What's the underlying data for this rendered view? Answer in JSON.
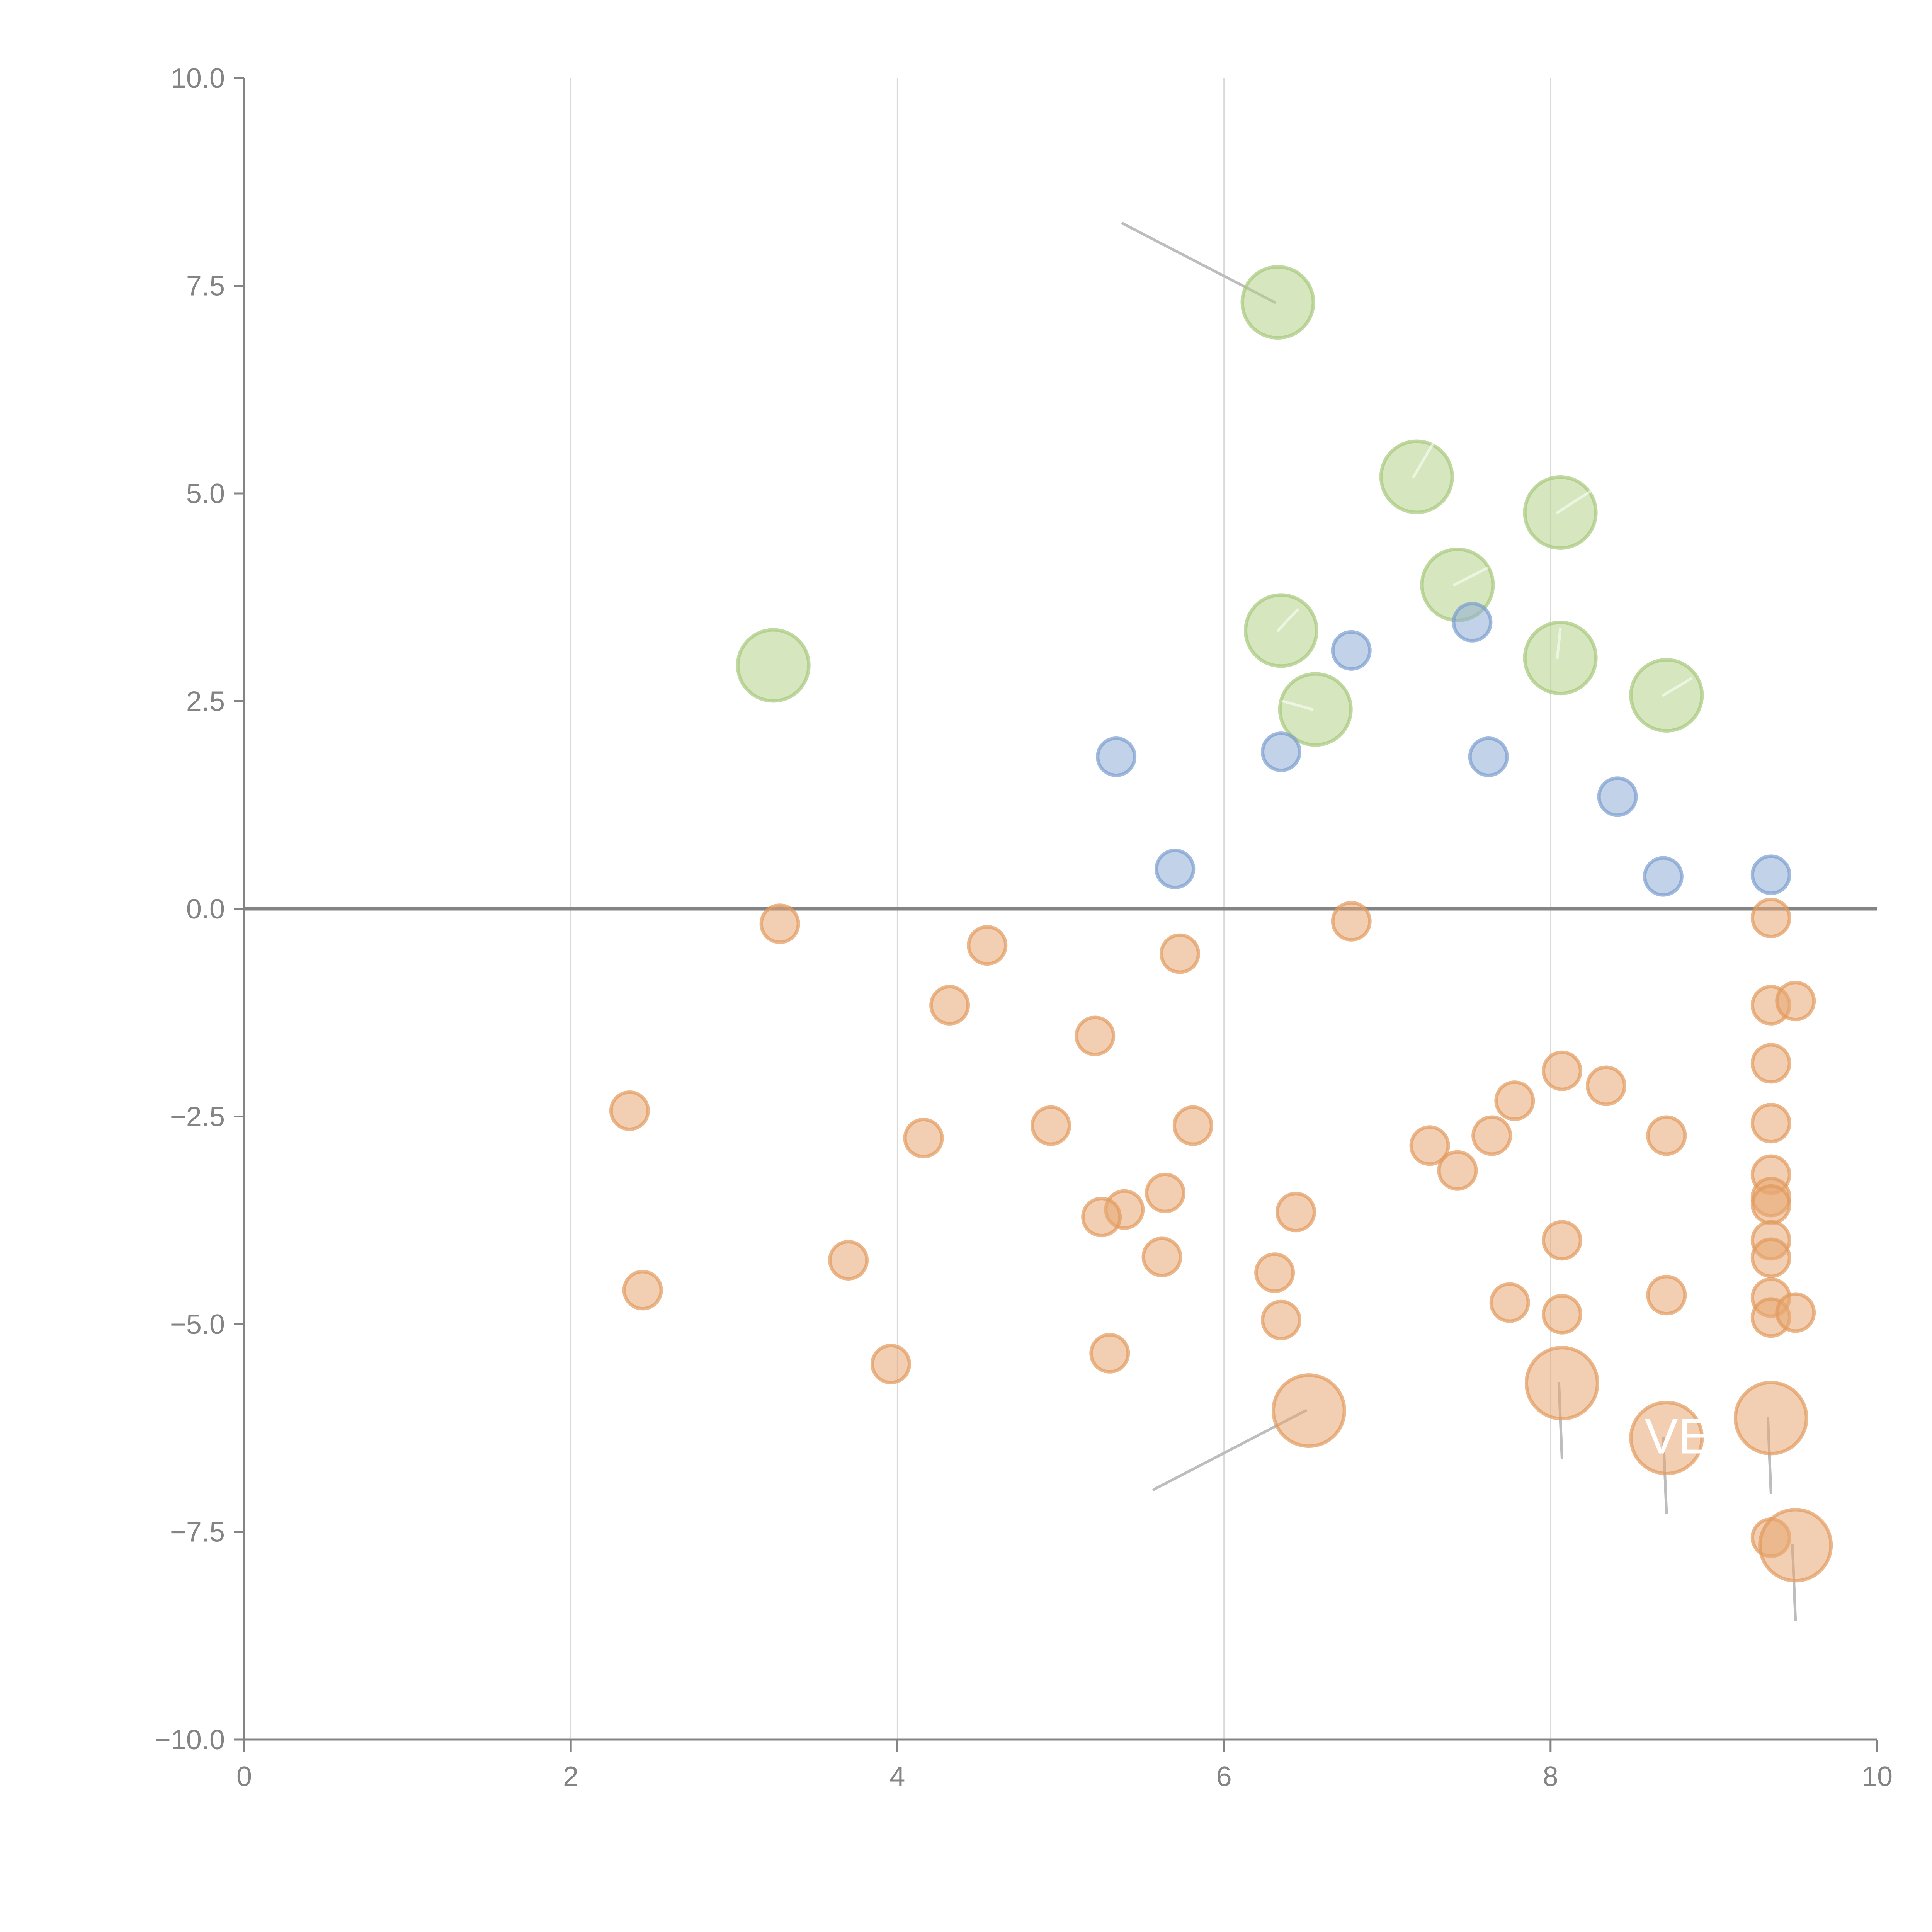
{
  "chart_data": {
    "type": "scatter",
    "title": "",
    "xlabel": "",
    "ylabel": "",
    "xlim": [
      0,
      10
    ],
    "ylim": [
      -10,
      10
    ],
    "x_ticks": [
      "0",
      "2",
      "4",
      "6",
      "8",
      "10"
    ],
    "x_tick_values": [
      0,
      2,
      4,
      6,
      8,
      10
    ],
    "y_ticks": [
      "10.0",
      "7.5",
      "5.0",
      "2.5",
      "0.0",
      "−2.5",
      "−5.0",
      "−7.5",
      "−10.0"
    ],
    "y_tick_values": [
      10,
      7.5,
      5,
      2.5,
      0,
      -2.5,
      -5,
      -7.5,
      -10
    ],
    "grid": "vertical",
    "zero_line": true,
    "series": [
      {
        "name": "green",
        "color": "#b5d18a",
        "stroke": "#a6c77a",
        "size": "large",
        "points": [
          {
            "x": 6.33,
            "y": 7.3,
            "leader": "dark",
            "ldx": -0.95,
            "ldy": 0.95
          },
          {
            "x": 7.18,
            "y": 5.2,
            "leader": "light",
            "ldx": 0.1,
            "ldy": 0.4
          },
          {
            "x": 8.06,
            "y": 4.77,
            "leader": "light",
            "ldx": 0.18,
            "ldy": 0.25
          },
          {
            "x": 7.43,
            "y": 3.9,
            "leader": "light",
            "ldx": 0.18,
            "ldy": 0.2
          },
          {
            "x": 6.35,
            "y": 3.35,
            "leader": "light",
            "ldx": 0.1,
            "ldy": 0.25
          },
          {
            "x": 8.06,
            "y": 3.02,
            "leader": "light",
            "ldx": 0.0,
            "ldy": 0.35
          },
          {
            "x": 8.71,
            "y": 2.57,
            "leader": "light",
            "ldx": 0.15,
            "ldy": 0.2
          },
          {
            "x": 6.56,
            "y": 2.4,
            "leader": "light",
            "ldx": -0.2,
            "ldy": 0.1
          },
          {
            "x": 3.24,
            "y": 2.93
          }
        ]
      },
      {
        "name": "blue",
        "color": "#8fadd6",
        "stroke": "#7a9dcf",
        "size": "small",
        "points": [
          {
            "x": 5.34,
            "y": 1.83
          },
          {
            "x": 6.35,
            "y": 1.89
          },
          {
            "x": 6.78,
            "y": 3.11
          },
          {
            "x": 7.52,
            "y": 3.45
          },
          {
            "x": 7.62,
            "y": 1.83
          },
          {
            "x": 8.41,
            "y": 1.35
          },
          {
            "x": 5.7,
            "y": 0.48
          },
          {
            "x": 8.69,
            "y": 0.39
          },
          {
            "x": 9.35,
            "y": 0.41
          }
        ]
      },
      {
        "name": "orange",
        "color": "#e7a873",
        "stroke": "#e39a5c",
        "size": "small",
        "points": [
          {
            "x": 3.28,
            "y": -0.18
          },
          {
            "x": 4.55,
            "y": -0.44
          },
          {
            "x": 4.32,
            "y": -1.16
          },
          {
            "x": 5.21,
            "y": -1.53
          },
          {
            "x": 5.73,
            "y": -0.54
          },
          {
            "x": 6.78,
            "y": -0.15
          },
          {
            "x": 2.36,
            "y": -2.43
          },
          {
            "x": 4.16,
            "y": -2.76
          },
          {
            "x": 4.94,
            "y": -2.61
          },
          {
            "x": 5.81,
            "y": -2.61
          },
          {
            "x": 5.64,
            "y": -3.42
          },
          {
            "x": 5.39,
            "y": -3.62
          },
          {
            "x": 5.25,
            "y": -3.71
          },
          {
            "x": 5.62,
            "y": -4.19
          },
          {
            "x": 6.44,
            "y": -3.65
          },
          {
            "x": 6.31,
            "y": -4.38
          },
          {
            "x": 6.35,
            "y": -4.95
          },
          {
            "x": 5.3,
            "y": -5.35
          },
          {
            "x": 3.96,
            "y": -5.48
          },
          {
            "x": 3.7,
            "y": -4.23
          },
          {
            "x": 2.44,
            "y": -4.59
          },
          {
            "x": 7.26,
            "y": -2.85
          },
          {
            "x": 7.43,
            "y": -3.15
          },
          {
            "x": 7.64,
            "y": -2.73
          },
          {
            "x": 7.78,
            "y": -2.31
          },
          {
            "x": 8.07,
            "y": -1.95
          },
          {
            "x": 8.34,
            "y": -2.13
          },
          {
            "x": 8.71,
            "y": -2.73
          },
          {
            "x": 8.07,
            "y": -3.99
          },
          {
            "x": 7.75,
            "y": -4.74
          },
          {
            "x": 8.07,
            "y": -4.88
          },
          {
            "x": 8.71,
            "y": -4.65
          },
          {
            "x": 9.35,
            "y": -0.11
          },
          {
            "x": 9.35,
            "y": -1.16
          },
          {
            "x": 9.5,
            "y": -1.11
          },
          {
            "x": 9.35,
            "y": -1.86
          },
          {
            "x": 9.35,
            "y": -2.58
          },
          {
            "x": 9.35,
            "y": -3.2
          },
          {
            "x": 9.35,
            "y": -3.47
          },
          {
            "x": 9.35,
            "y": -3.56
          },
          {
            "x": 9.35,
            "y": -3.99
          },
          {
            "x": 9.35,
            "y": -4.2
          },
          {
            "x": 9.35,
            "y": -4.68
          },
          {
            "x": 9.35,
            "y": -4.92
          },
          {
            "x": 9.5,
            "y": -4.86
          },
          {
            "x": 9.35,
            "y": -7.57
          }
        ]
      },
      {
        "name": "orange-large",
        "color": "#e7a873",
        "stroke": "#e39a5c",
        "size": "large",
        "points": [
          {
            "x": 6.52,
            "y": -6.04,
            "leader": "dark",
            "ldx": -0.95,
            "ldy": -0.95
          },
          {
            "x": 8.07,
            "y": -5.71,
            "leader": "dark",
            "ldx": 0.0,
            "ldy": -0.9
          },
          {
            "x": 8.71,
            "y": -6.37,
            "leader": "dark",
            "ldx": 0.0,
            "ldy": -0.9,
            "label": "VE"
          },
          {
            "x": 9.35,
            "y": -6.13,
            "leader": "dark",
            "ldx": 0.0,
            "ldy": -0.9
          },
          {
            "x": 9.5,
            "y": -7.66,
            "leader": "dark",
            "ldx": 0.0,
            "ldy": -0.9
          }
        ]
      }
    ]
  }
}
